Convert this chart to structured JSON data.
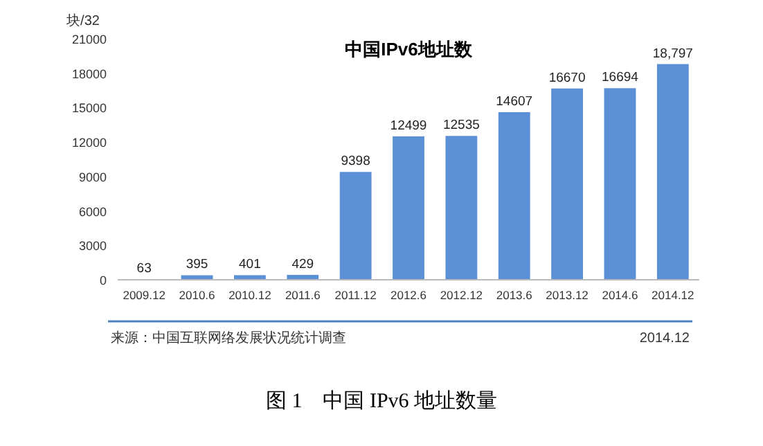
{
  "chart_data": {
    "type": "bar",
    "title": "中国IPv6地址数",
    "ylabel": "块/32",
    "categories": [
      "2009.12",
      "2010.6",
      "2010.12",
      "2011.6",
      "2011.12",
      "2012.6",
      "2012.12",
      "2013.6",
      "2013.12",
      "2014.6",
      "2014.12"
    ],
    "values": [
      63,
      395,
      401,
      429,
      9398,
      12499,
      12535,
      14607,
      16670,
      16694,
      18797
    ],
    "value_labels": [
      "63",
      "395",
      "401",
      "429",
      "9398",
      "12499",
      "12535",
      "14607",
      "16670",
      "16694",
      "18,797"
    ],
    "color": "#5b8fd6",
    "ylim": [
      0,
      21000
    ],
    "yticks": [
      0,
      3000,
      6000,
      9000,
      12000,
      15000,
      18000,
      21000
    ],
    "grid": false,
    "annotations": [
      "来源：中国互联网络发展状况统计调查",
      "2014.12",
      "图 1　中国 IPv6 地址数量"
    ]
  }
}
